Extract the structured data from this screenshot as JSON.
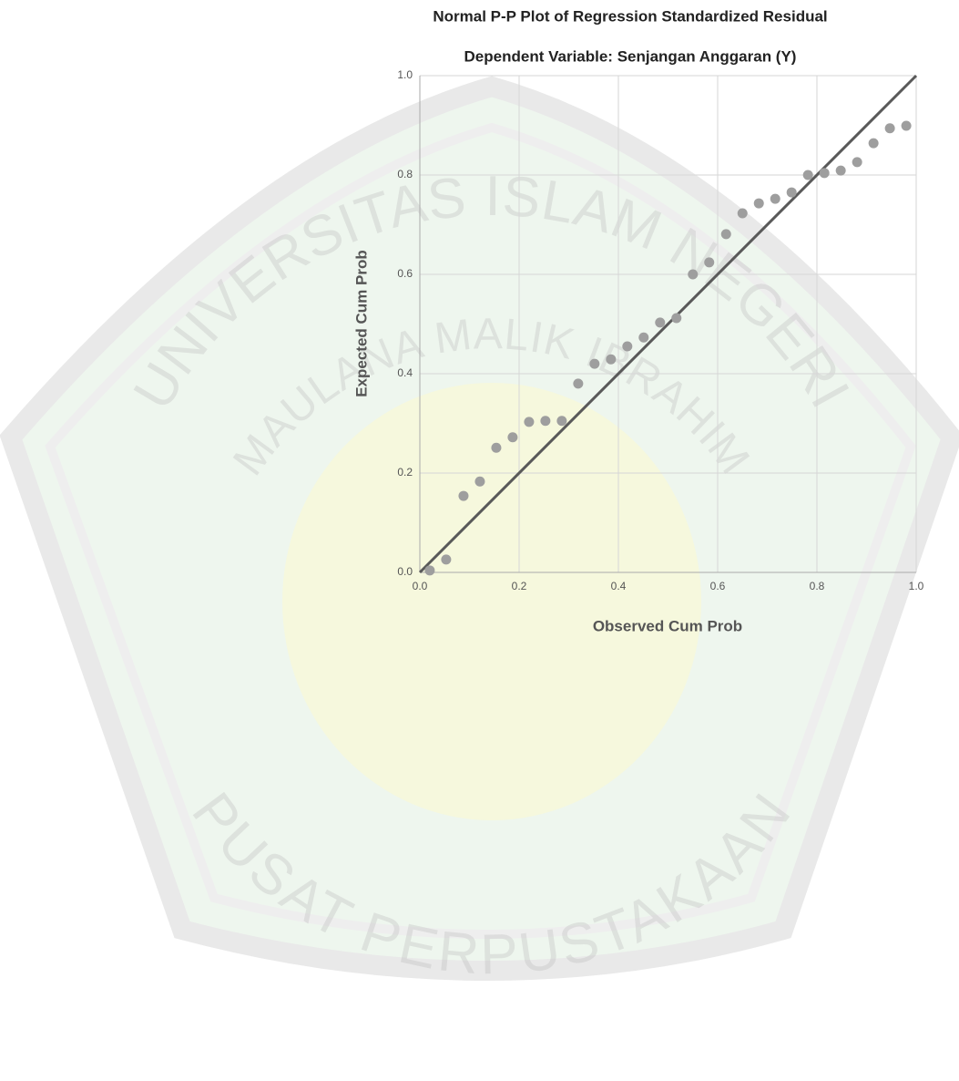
{
  "chart_data": {
    "type": "scatter",
    "title": "Normal P-P Plot of Regression Standardized Residual",
    "subtitle": "Dependent Variable: Senjangan Anggaran (Y)",
    "xlabel": "Observed Cum Prob",
    "ylabel": "Expected Cum Prob",
    "x": [
      0.02,
      0.053,
      0.088,
      0.121,
      0.154,
      0.187,
      0.22,
      0.253,
      0.286,
      0.319,
      0.352,
      0.385,
      0.418,
      0.451,
      0.484,
      0.517,
      0.55,
      0.583,
      0.617,
      0.65,
      0.683,
      0.716,
      0.749,
      0.782,
      0.815,
      0.848,
      0.881,
      0.914,
      0.947,
      0.98
    ],
    "values": [
      0.004,
      0.026,
      0.154,
      0.183,
      0.251,
      0.272,
      0.303,
      0.305,
      0.305,
      0.38,
      0.42,
      0.429,
      0.455,
      0.473,
      0.503,
      0.512,
      0.6,
      0.624,
      0.681,
      0.723,
      0.743,
      0.752,
      0.765,
      0.8,
      0.804,
      0.809,
      0.826,
      0.864,
      0.894,
      0.899
    ],
    "color": "#9e9e9e",
    "line_color": "#595959",
    "xlim": [
      0,
      1
    ],
    "ylim": [
      0,
      1
    ],
    "xticks": [
      {
        "value": 0,
        "label": "0.0"
      },
      0.2,
      0.4,
      0.6,
      0.8,
      {
        "value": 1,
        "label": "1.0"
      }
    ],
    "yticks": [
      {
        "value": 0,
        "label": "0.0"
      },
      0.2,
      0.4,
      0.6,
      0.8,
      {
        "value": 1,
        "label": "1.0"
      }
    ],
    "grid": true
  },
  "watermark": {
    "top": "UNIVERSITAS ISLAM NEGERI",
    "middle": "MAULANA MALIK IBRAHIM",
    "bottom": "PUSAT PERPUSTAKAAN"
  }
}
